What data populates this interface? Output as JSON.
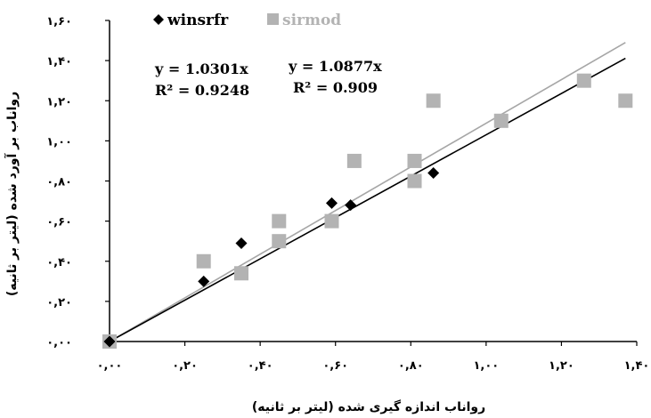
{
  "chart_data": {
    "type": "scatter",
    "title": "",
    "xlabel": "رواناب اندازه گیری شده (لیتر بر ثانیه)",
    "ylabel": "رواناب بر آورد شده (لیتر بر ثانیه)",
    "xlim": [
      0,
      1.4
    ],
    "ylim": [
      0,
      1.6
    ],
    "x_ticks": [
      0,
      0.2,
      0.4,
      0.6,
      0.8,
      1.0,
      1.2,
      1.4
    ],
    "x_tick_labels": [
      "۰,۰۰",
      "۰,۲۰",
      "۰,۴۰",
      "۰,۶۰",
      "۰,۸۰",
      "۱,۰۰",
      "۱,۲۰",
      "۱,۴۰"
    ],
    "y_ticks": [
      0,
      0.2,
      0.4,
      0.6,
      0.8,
      1.0,
      1.2,
      1.4,
      1.6
    ],
    "y_tick_labels": [
      "۰,۰۰",
      "۰,۲۰",
      "۰,۴۰",
      "۰,۶۰",
      "۰,۸۰",
      "۱,۰۰",
      "۱,۲۰",
      "۱,۴۰",
      "۱,۶۰"
    ],
    "legend_position": "top-left",
    "series": [
      {
        "name": "winsrfr",
        "marker": "diamond",
        "color": "#000000",
        "points": [
          [
            0,
            0
          ],
          [
            0.25,
            0.3
          ],
          [
            0.35,
            0.49
          ],
          [
            0.59,
            0.69
          ],
          [
            0.64,
            0.68
          ],
          [
            0.86,
            0.84
          ]
        ],
        "trendline": {
          "slope": 1.0301,
          "equation": "y = 1.0301x",
          "r2": "R² = 0.9248",
          "color": "#000000"
        }
      },
      {
        "name": "sirmod",
        "marker": "square",
        "color": "#b3b3b3",
        "points": [
          [
            0,
            0
          ],
          [
            0.25,
            0.4
          ],
          [
            0.35,
            0.34
          ],
          [
            0.45,
            0.6
          ],
          [
            0.45,
            0.5
          ],
          [
            0.59,
            0.6
          ],
          [
            0.65,
            0.9
          ],
          [
            0.81,
            0.9
          ],
          [
            0.81,
            0.8
          ],
          [
            0.86,
            1.2
          ],
          [
            1.04,
            1.1
          ],
          [
            1.26,
            1.3
          ],
          [
            1.37,
            1.2
          ]
        ],
        "trendline": {
          "slope": 1.0877,
          "equation": "y = 1.0877x",
          "r2": "R² = 0.909",
          "color": "#a6a6a6"
        }
      }
    ]
  }
}
